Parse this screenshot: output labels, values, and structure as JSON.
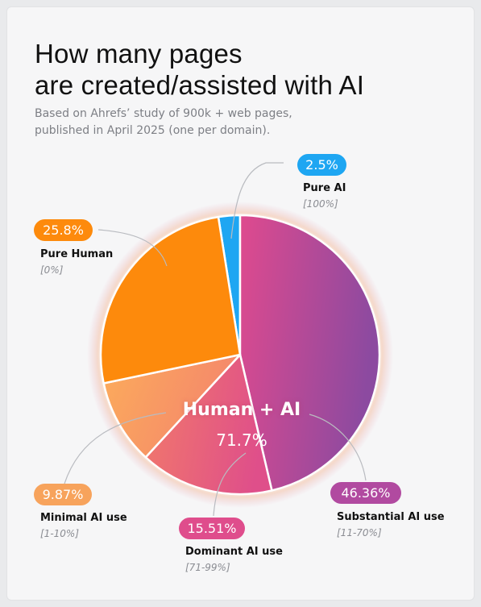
{
  "header": {
    "title_line1": "How many pages",
    "title_line2": "are created/assisted with AI",
    "subtitle_line1": "Based on Ahrefs’ study of 900k + web pages,",
    "subtitle_line2": "published in April 2025 (one per domain)."
  },
  "center": {
    "label": "Human + AI",
    "value": "71.7%"
  },
  "chart_data": {
    "type": "pie",
    "title": "How many pages are created/assisted with AI",
    "categories": [
      "Pure AI",
      "Substantial AI use",
      "Dominant AI use",
      "Minimal AI use",
      "Pure Human"
    ],
    "values": [
      2.5,
      46.36,
      15.51,
      9.87,
      25.8
    ],
    "value_labels": [
      "2.5%",
      "46.36%",
      "15.51%",
      "9.87%",
      "25.8%"
    ],
    "ranges": [
      "[100%]",
      "[11-70%]",
      "[71-99%]",
      "[1-10%]",
      "[0%]"
    ],
    "colors": [
      "#1ea6f2",
      "#b14aa0",
      "#df4d8c",
      "#f7a35c",
      "#fd8a0c"
    ],
    "group_annotation": {
      "label": "Human + AI",
      "value": "71.7%",
      "includes": [
        "Substantial AI use",
        "Dominant AI use",
        "Minimal AI use"
      ]
    }
  }
}
